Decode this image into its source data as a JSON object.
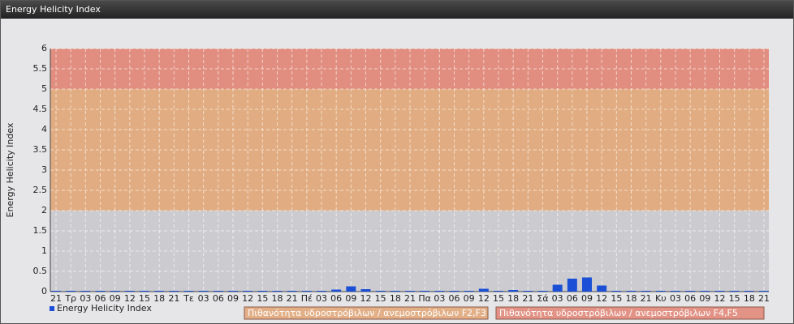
{
  "chart_data": {
    "type": "bar",
    "title": "Energy Helicity Index",
    "y_label": "Energy Helicity Index",
    "categories": [
      "21",
      "Τρ",
      "03",
      "06",
      "09",
      "12",
      "15",
      "18",
      "21",
      "Τε",
      "03",
      "06",
      "09",
      "12",
      "15",
      "18",
      "21",
      "Πέ",
      "03",
      "06",
      "09",
      "12",
      "15",
      "18",
      "21",
      "Πα",
      "03",
      "06",
      "09",
      "12",
      "15",
      "18",
      "21",
      "Σά",
      "03",
      "06",
      "09",
      "12",
      "15",
      "18",
      "21",
      "Κυ",
      "03",
      "06",
      "09",
      "12",
      "15",
      "18",
      "21"
    ],
    "series": [
      {
        "name": "Energy Helicity Index",
        "color": "#1a4fd6",
        "values": [
          0.02,
          0.02,
          0.02,
          0.02,
          0.02,
          0.02,
          0.02,
          0.02,
          0.02,
          0.02,
          0.02,
          0.02,
          0.02,
          0.02,
          0.02,
          0.02,
          0.02,
          0.02,
          0.02,
          0.05,
          0.13,
          0.06,
          0.02,
          0.02,
          0.02,
          0.02,
          0.02,
          0.02,
          0.02,
          0.07,
          0.02,
          0.04,
          0.02,
          0.02,
          0.17,
          0.32,
          0.35,
          0.15,
          0.02,
          0.02,
          0.02,
          0.02,
          0.02,
          0.02,
          0.02,
          0.02,
          0.02,
          0.02,
          0.02
        ]
      }
    ],
    "bands": [
      {
        "from": 0,
        "to": 2,
        "color": "#c9c9cd"
      },
      {
        "from": 2,
        "to": 5,
        "color": "#e0a575",
        "name": "Πιθανότητα υδροστρόβιλων / ανεμοστρόβιλων F2,F3"
      },
      {
        "from": 5,
        "to": 6,
        "color": "#e08474",
        "name": "Πιθανότητα υδροστρόβιλων / ανεμοστρόβιλων F4,F5"
      }
    ],
    "ylim": [
      0,
      6
    ],
    "yticks": [
      0,
      0.5,
      1,
      1.5,
      2,
      2.5,
      3,
      3.5,
      4,
      4.5,
      5,
      5.5,
      6
    ],
    "grid": true
  }
}
